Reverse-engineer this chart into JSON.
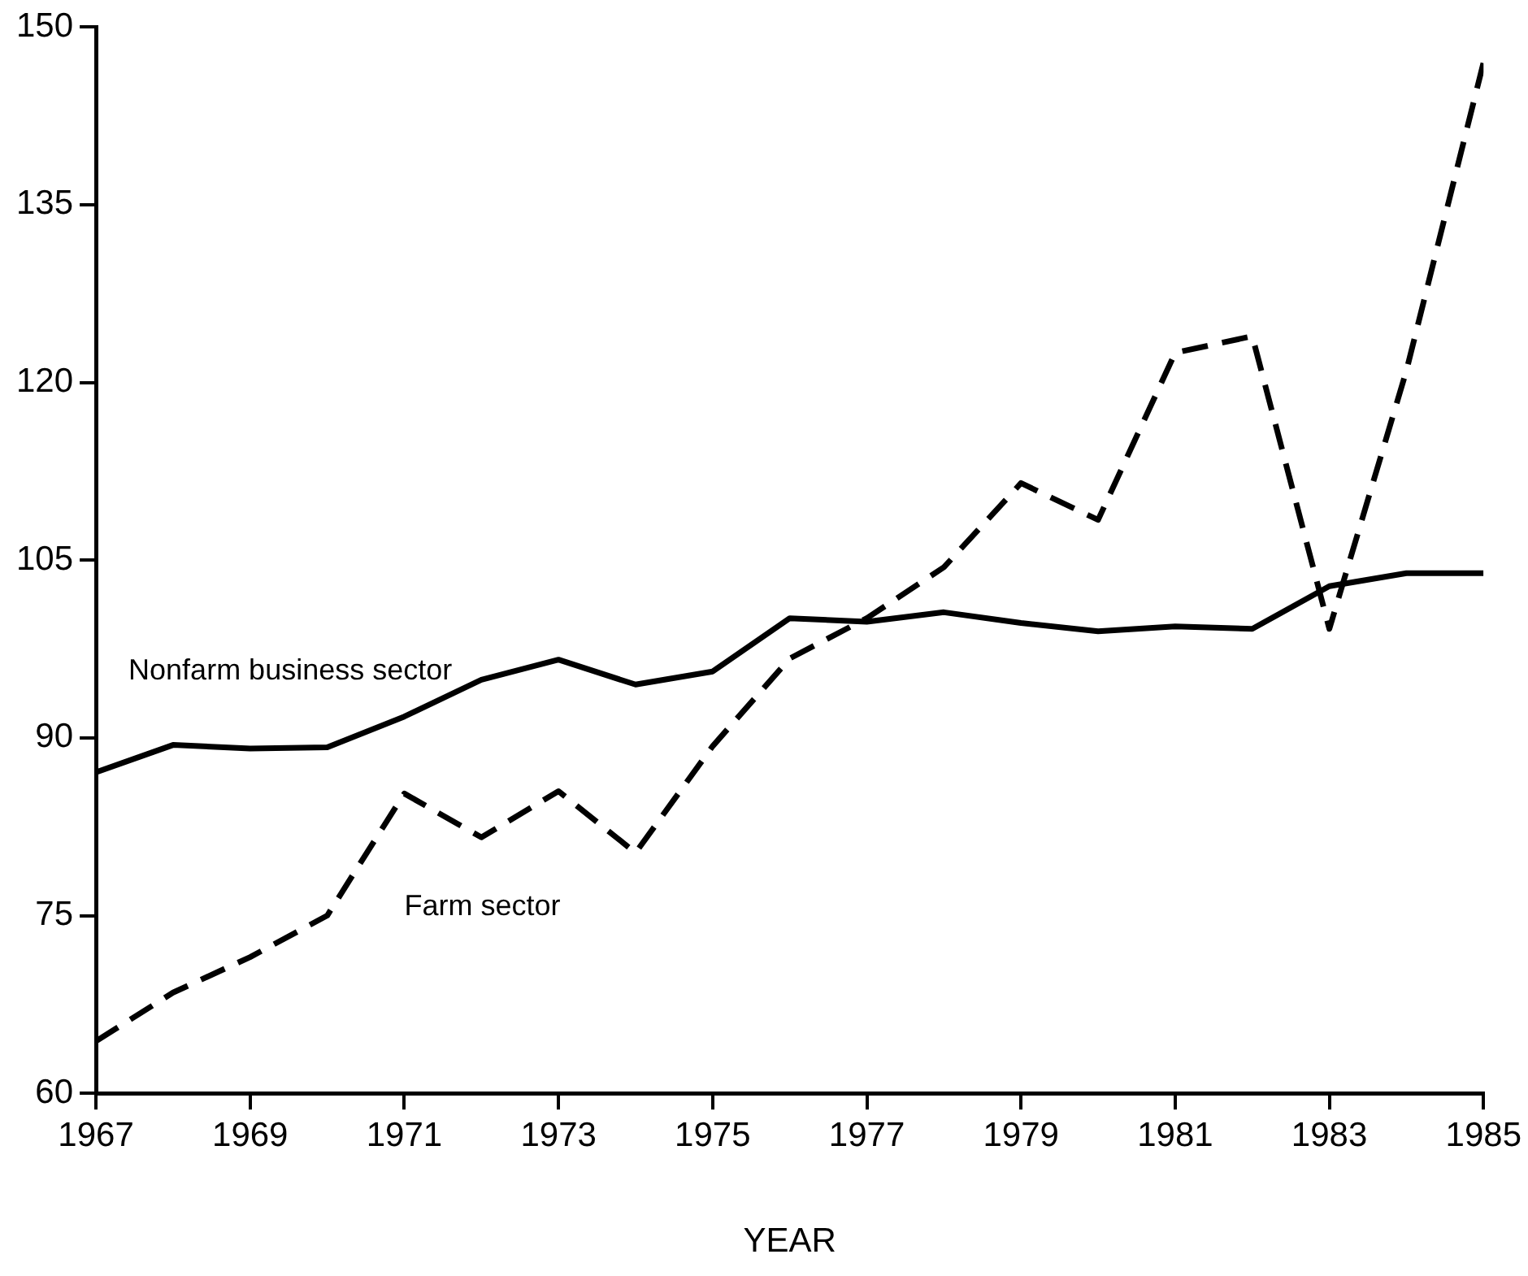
{
  "chart_data": {
    "type": "line",
    "xlabel": "YEAR",
    "x": [
      1967,
      1968,
      1969,
      1970,
      1971,
      1972,
      1973,
      1974,
      1975,
      1976,
      1977,
      1978,
      1979,
      1980,
      1981,
      1982,
      1983,
      1984,
      1985
    ],
    "series": [
      {
        "name": "Nonfarm business sector",
        "color": "#000000",
        "line_style": "solid",
        "values": [
          87.1,
          89.4,
          89.1,
          89.2,
          91.8,
          94.9,
          96.6,
          94.5,
          95.6,
          100.1,
          99.8,
          100.6,
          99.7,
          99.0,
          99.4,
          99.2,
          102.8,
          103.9,
          103.9
        ]
      },
      {
        "name": "Farm sector",
        "color": "#000000",
        "line_style": "dashed",
        "values": [
          64.4,
          68.5,
          71.5,
          75.0,
          85.3,
          81.6,
          85.5,
          80.3,
          89.3,
          96.7,
          100.1,
          104.4,
          111.5,
          108.4,
          122.5,
          123.9,
          99.2,
          121,
          147
        ]
      }
    ],
    "xlim": [
      1967,
      1985
    ],
    "xticks": [
      1967,
      1969,
      1971,
      1973,
      1975,
      1977,
      1979,
      1981,
      1983,
      1985
    ],
    "ylim": [
      60,
      150
    ],
    "yticks": [
      60,
      75,
      90,
      105,
      120,
      135,
      150
    ],
    "grid": false,
    "legend": false,
    "marker": "none"
  }
}
